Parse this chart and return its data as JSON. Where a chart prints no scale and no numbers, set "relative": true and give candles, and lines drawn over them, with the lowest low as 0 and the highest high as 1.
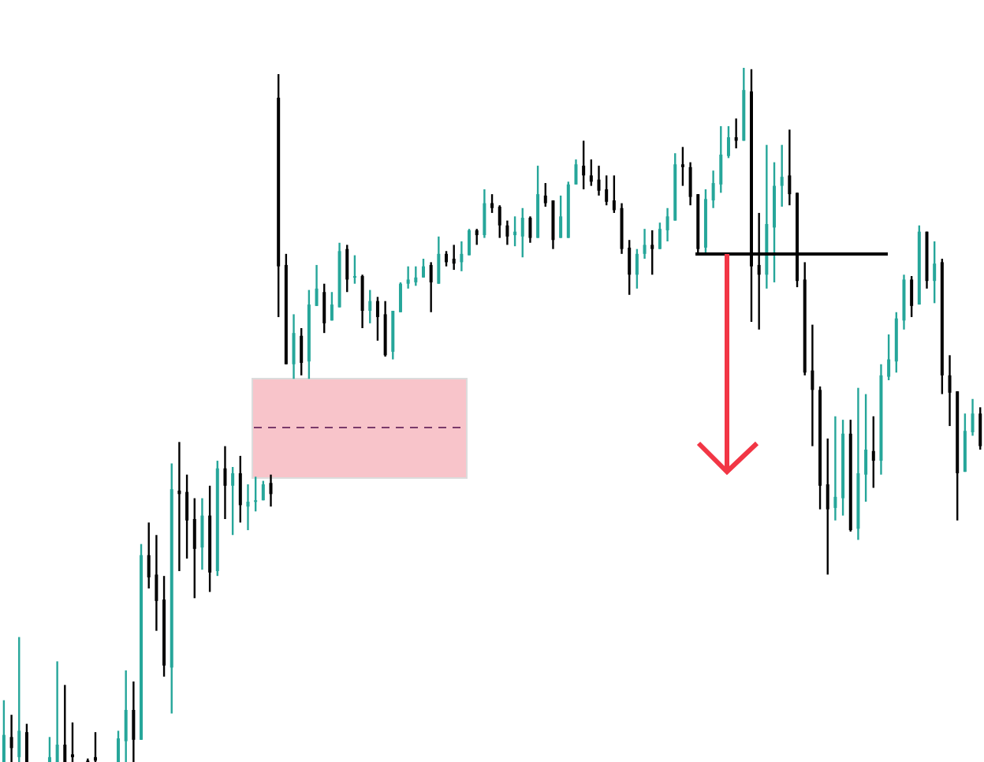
{
  "chart_data": {
    "type": "candlestick",
    "relative": true,
    "categories": [
      null,
      null,
      null,
      null,
      null,
      null,
      null,
      null,
      null,
      null,
      null,
      null,
      null,
      null,
      null,
      null,
      null,
      null,
      null,
      null,
      null,
      null,
      null,
      null,
      null,
      null,
      null,
      null,
      null,
      null,
      null,
      null,
      null,
      null,
      null,
      null,
      null,
      null,
      null,
      null,
      null,
      null,
      null,
      null,
      null,
      null,
      null,
      null,
      null,
      null,
      null,
      null,
      null,
      null,
      null,
      null,
      null,
      null,
      null,
      null,
      null,
      null,
      null,
      null,
      null,
      null,
      null,
      null,
      null,
      null,
      null,
      null,
      null,
      null,
      null,
      null,
      null,
      null,
      null,
      null,
      null,
      null,
      null,
      null,
      null,
      null,
      null,
      null,
      null,
      null,
      null,
      null,
      null,
      null,
      null,
      null,
      null,
      null,
      null,
      null,
      null,
      null,
      null,
      null,
      null,
      null,
      null,
      null,
      null,
      null,
      null,
      null,
      null,
      null,
      null,
      null,
      null,
      null,
      null,
      null,
      null,
      null,
      null,
      null,
      null,
      null,
      null,
      null,
      null
    ],
    "ohlc": [
      [
        0,
        0.089,
        0,
        0.039
      ],
      [
        0.036,
        0.068,
        0,
        0.02
      ],
      [
        0.007,
        0.18,
        0,
        0.045
      ],
      [
        0.043,
        0.055,
        0,
        0
      ],
      null,
      null,
      [
        0,
        0.036,
        0,
        0.007
      ],
      [
        0,
        0.145,
        0,
        0.025
      ],
      [
        0.025,
        0.111,
        0,
        0
      ],
      [
        0.011,
        0.057,
        0,
        0.007
      ],
      null,
      [
        0.002,
        0.005,
        0,
        0
      ],
      [
        0.007,
        0.043,
        0,
        0.002
      ],
      null,
      null,
      [
        0,
        0.045,
        0,
        0.034
      ],
      [
        0.03,
        0.132,
        0,
        0.075
      ],
      [
        0.075,
        0.116,
        0,
        0.032
      ],
      [
        0.032,
        0.314,
        0.032,
        0.298
      ],
      [
        0.298,
        0.345,
        0.25,
        0.266
      ],
      [
        0.27,
        0.327,
        0.189,
        0.232
      ],
      [
        0.234,
        0.268,
        0.123,
        0.139
      ],
      [
        0.136,
        0.43,
        0.07,
        0.393
      ],
      [
        0.391,
        0.461,
        0.275,
        0.386
      ],
      [
        0.389,
        0.414,
        0.293,
        0.348
      ],
      [
        0.35,
        0.38,
        0.236,
        0.307
      ],
      [
        0.309,
        0.38,
        0.277,
        0.355
      ],
      [
        0.355,
        0.398,
        0.245,
        0.273
      ],
      [
        0.275,
        0.434,
        0.268,
        0.423
      ],
      [
        0.423,
        0.455,
        0.35,
        0.398
      ],
      [
        0.398,
        0.425,
        0.327,
        0.416
      ],
      [
        0.416,
        0.441,
        0.345,
        0.37
      ],
      [
        0.368,
        0.4,
        0.334,
        0.375
      ],
      [
        0.375,
        0.411,
        0.361,
        0.377
      ],
      [
        0.377,
        0.405,
        0.377,
        0.4
      ],
      [
        0.402,
        0.414,
        0.368,
        0.386
      ],
      [
        0.957,
        0.991,
        0.641,
        0.714
      ],
      [
        0.716,
        0.732,
        0.573,
        0.573
      ],
      [
        0.573,
        0.645,
        0.552,
        0.618
      ],
      [
        0.614,
        0.625,
        0.557,
        0.575
      ],
      [
        0.577,
        0.68,
        0.552,
        0.659
      ],
      [
        0.657,
        0.716,
        0.657,
        0.682
      ],
      [
        0.677,
        0.689,
        0.618,
        0.632
      ],
      [
        0.636,
        0.677,
        0.636,
        0.659
      ],
      [
        0.655,
        0.748,
        0.655,
        0.736
      ],
      [
        0.739,
        0.745,
        0.677,
        0.695
      ],
      [
        0.698,
        0.73,
        0.689,
        0.7
      ],
      [
        0.7,
        0.702,
        0.625,
        0.65
      ],
      [
        0.65,
        0.68,
        0.632,
        0.664
      ],
      [
        0.664,
        0.67,
        0.607,
        0.641
      ],
      [
        0.645,
        0.664,
        0.584,
        0.586
      ],
      [
        0.591,
        0.65,
        0.58,
        0.65
      ],
      [
        0.648,
        0.691,
        0.648,
        0.689
      ],
      [
        0.689,
        0.714,
        0.682,
        0.695
      ],
      [
        0.691,
        0.714,
        0.686,
        0.698
      ],
      [
        0.698,
        0.725,
        0.698,
        0.714
      ],
      [
        0.716,
        0.72,
        0.648,
        0.691
      ],
      [
        0.689,
        0.757,
        0.689,
        0.732
      ],
      [
        0.732,
        0.736,
        0.714,
        0.72
      ],
      [
        0.725,
        0.745,
        0.709,
        0.718
      ],
      [
        0.72,
        0.75,
        0.707,
        0.732
      ],
      [
        0.73,
        0.768,
        0.73,
        0.766
      ],
      [
        0.766,
        0.768,
        0.745,
        0.759
      ],
      [
        0.759,
        0.825,
        0.755,
        0.805
      ],
      [
        0.805,
        0.818,
        0.791,
        0.798
      ],
      [
        0.8,
        0.802,
        0.755,
        0.773
      ],
      [
        0.773,
        0.78,
        0.745,
        0.757
      ],
      [
        0.759,
        0.786,
        0.743,
        0.764
      ],
      [
        0.757,
        0.798,
        0.727,
        0.784
      ],
      [
        0.784,
        0.786,
        0.748,
        0.755
      ],
      [
        0.755,
        0.859,
        0.755,
        0.818
      ],
      [
        0.816,
        0.834,
        0.8,
        0.805
      ],
      [
        0.809,
        0.809,
        0.739,
        0.752
      ],
      [
        0.755,
        0.816,
        0.755,
        0.786
      ],
      [
        0.755,
        0.836,
        0.755,
        0.832
      ],
      [
        0.832,
        0.868,
        0.832,
        0.861
      ],
      [
        0.859,
        0.895,
        0.825,
        0.845
      ],
      [
        0.845,
        0.868,
        0.83,
        0.836
      ],
      [
        0.839,
        0.859,
        0.816,
        0.823
      ],
      [
        0.825,
        0.845,
        0.802,
        0.807
      ],
      [
        0.809,
        0.845,
        0.791,
        0.795
      ],
      [
        0.798,
        0.805,
        0.732,
        0.739
      ],
      [
        0.741,
        0.752,
        0.673,
        0.702
      ],
      [
        0.702,
        0.739,
        0.682,
        0.732
      ],
      [
        0.732,
        0.768,
        0.725,
        0.745
      ],
      [
        0.745,
        0.766,
        0.702,
        0.739
      ],
      [
        0.739,
        0.777,
        0.739,
        0.768
      ],
      [
        0.766,
        0.798,
        0.75,
        0.786
      ],
      [
        0.78,
        0.877,
        0.78,
        0.861
      ],
      [
        0.861,
        0.886,
        0.83,
        0.857
      ],
      [
        0.857,
        0.864,
        0.802,
        0.814
      ],
      [
        0.818,
        0.818,
        0.734,
        0.739
      ],
      [
        0.741,
        0.825,
        0.73,
        0.811
      ],
      [
        0.809,
        0.852,
        0.798,
        0.834
      ],
      [
        0.832,
        0.916,
        0.82,
        0.875
      ],
      [
        0.873,
        0.916,
        0.87,
        0.9
      ],
      [
        0.9,
        0.927,
        0.884,
        0.895
      ],
      [
        0.895,
        1,
        0.895,
        0.968
      ],
      [
        0.966,
        0.998,
        0.634,
        0.714
      ],
      [
        0.716,
        0.791,
        0.623,
        0.702
      ],
      [
        0.702,
        0.889,
        0.682,
        0.775
      ],
      [
        0.77,
        0.864,
        0.691,
        0.83
      ],
      [
        0.83,
        0.889,
        0.8,
        0.843
      ],
      [
        0.845,
        0.911,
        0.802,
        0.818
      ],
      [
        0.82,
        0.82,
        0.684,
        0.693
      ],
      [
        0.695,
        0.72,
        0.557,
        0.561
      ],
      [
        0.564,
        0.63,
        0.455,
        0.536
      ],
      [
        0.536,
        0.541,
        0.364,
        0.398
      ],
      [
        0.4,
        0.466,
        0.27,
        0.364
      ],
      [
        0.366,
        0.498,
        0.348,
        0.382
      ],
      [
        0.38,
        0.493,
        0.355,
        0.473
      ],
      [
        0.473,
        0.493,
        0.332,
        0.334
      ],
      [
        0.336,
        0.539,
        0.32,
        0.416
      ],
      [
        0.414,
        0.53,
        0.375,
        0.45
      ],
      [
        0.448,
        0.498,
        0.395,
        0.434
      ],
      [
        0.434,
        0.573,
        0.414,
        0.557
      ],
      [
        0.555,
        0.616,
        0.55,
        0.58
      ],
      [
        0.577,
        0.648,
        0.561,
        0.639
      ],
      [
        0.636,
        0.702,
        0.623,
        0.695
      ],
      [
        0.695,
        0.7,
        0.641,
        0.657
      ],
      [
        0.659,
        0.773,
        0.659,
        0.764
      ],
      [
        0.764,
        0.764,
        0.682,
        0.693
      ],
      [
        0.693,
        0.75,
        0.661,
        0.718
      ],
      [
        0.72,
        0.725,
        0.53,
        0.557
      ],
      [
        0.557,
        0.586,
        0.484,
        0.532
      ],
      [
        0.534,
        0.534,
        0.348,
        0.416
      ],
      [
        0.418,
        0.502,
        0.418,
        0.477
      ],
      [
        0.475,
        0.523,
        0.47,
        0.502
      ],
      [
        0.502,
        0.511,
        0.45,
        0.455
      ]
    ],
    "colors": [
      "#26a69a",
      "#000000",
      "#26a69a",
      "#000000",
      null,
      null,
      "#26a69a",
      "#26a69a",
      "#000000",
      "#000000",
      null,
      "#000000",
      "#000000",
      null,
      null,
      "#26a69a",
      "#26a69a",
      "#000000",
      "#26a69a",
      "#000000",
      "#000000",
      "#000000",
      "#26a69a",
      "#000000",
      "#000000",
      "#000000",
      "#26a69a",
      "#000000",
      "#26a69a",
      "#000000",
      "#26a69a",
      "#000000",
      "#26a69a",
      "#26a69a",
      "#26a69a",
      "#000000",
      "#000000",
      "#000000",
      "#26a69a",
      "#000000",
      "#26a69a",
      "#26a69a",
      "#000000",
      "#26a69a",
      "#26a69a",
      "#000000",
      "#26a69a",
      "#000000",
      "#26a69a",
      "#000000",
      "#000000",
      "#26a69a",
      "#26a69a",
      "#26a69a",
      "#26a69a",
      "#26a69a",
      "#000000",
      "#26a69a",
      "#000000",
      "#000000",
      "#26a69a",
      "#26a69a",
      "#000000",
      "#26a69a",
      "#000000",
      "#000000",
      "#000000",
      "#26a69a",
      "#26a69a",
      "#000000",
      "#26a69a",
      "#000000",
      "#000000",
      "#26a69a",
      "#26a69a",
      "#26a69a",
      "#000000",
      "#000000",
      "#000000",
      "#000000",
      "#000000",
      "#000000",
      "#000000",
      "#26a69a",
      "#26a69a",
      "#000000",
      "#26a69a",
      "#26a69a",
      "#26a69a",
      "#000000",
      "#000000",
      "#000000",
      "#26a69a",
      "#26a69a",
      "#26a69a",
      "#26a69a",
      "#000000",
      "#26a69a",
      "#000000",
      "#000000",
      "#26a69a",
      "#26a69a",
      "#26a69a",
      "#000000",
      "#000000",
      "#000000",
      "#000000",
      "#000000",
      "#000000",
      "#26a69a",
      "#26a69a",
      "#000000",
      "#26a69a",
      "#26a69a",
      "#000000",
      "#26a69a",
      "#26a69a",
      "#26a69a",
      "#26a69a",
      "#000000",
      "#26a69a",
      "#000000",
      "#26a69a",
      "#000000",
      "#000000",
      "#000000",
      "#26a69a",
      "#26a69a",
      "#000000"
    ]
  }
}
